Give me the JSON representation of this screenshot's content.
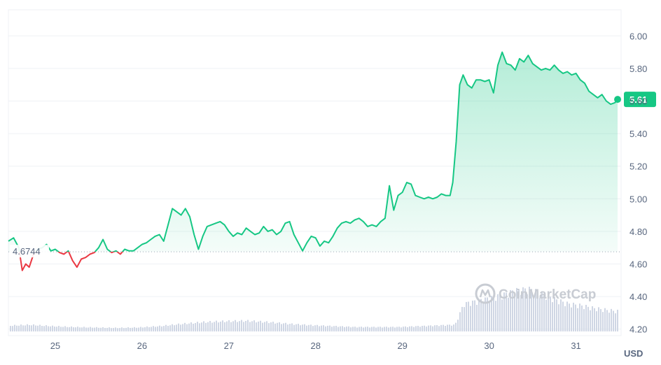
{
  "chart_data": {
    "type": "line",
    "ylim": [
      4.16,
      6.16
    ],
    "y_ticks": [
      "6.00",
      "5.80",
      "5.60",
      "5.40",
      "5.20",
      "5.00",
      "4.80",
      "4.60",
      "4.40",
      "4.20"
    ],
    "x_ticks": [
      {
        "label": "25",
        "x": 25
      },
      {
        "label": "26",
        "x": 26
      },
      {
        "label": "27",
        "x": 27
      },
      {
        "label": "28",
        "x": 28
      },
      {
        "label": "29",
        "x": 29
      },
      {
        "label": "30",
        "x": 30
      },
      {
        "label": "31",
        "x": 31
      }
    ],
    "xlim": [
      24.46,
      31.52
    ],
    "reference": {
      "label": "4.6744",
      "value": 4.6744
    },
    "last_price": {
      "label": "5.61",
      "value": 5.61
    },
    "unit_label": "USD",
    "watermark": "CoinMarketCap",
    "colors": {
      "up": "#16c784",
      "down": "#ea3943",
      "volume": "#cfd6e4",
      "grid": "#eff2f5",
      "text": "#58667e"
    },
    "series": [
      {
        "x": [
          24.46,
          24.52,
          24.58,
          24.62,
          24.66,
          24.7,
          24.75,
          24.8,
          24.85,
          24.9,
          24.95,
          25.0,
          25.05,
          25.1,
          25.15,
          25.2,
          25.25,
          25.3,
          25.35,
          25.4,
          25.45,
          25.5,
          25.55,
          25.6,
          25.65,
          25.7,
          25.75,
          25.8,
          25.85,
          25.9,
          25.95,
          26.0,
          26.05,
          26.1,
          26.15,
          26.2,
          26.25,
          26.3,
          26.35,
          26.4,
          26.45,
          26.5,
          26.55,
          26.6,
          26.65,
          26.7,
          26.75,
          26.8,
          26.85,
          26.9,
          26.95,
          27.0,
          27.05,
          27.1,
          27.15,
          27.2,
          27.25,
          27.3,
          27.35,
          27.4,
          27.45,
          27.5,
          27.55,
          27.6,
          27.65,
          27.7,
          27.75,
          27.8,
          27.85,
          27.9,
          27.95,
          28.0,
          28.05,
          28.1,
          28.15,
          28.2,
          28.25,
          28.3,
          28.35,
          28.4,
          28.45,
          28.5,
          28.55,
          28.6,
          28.65,
          28.7,
          28.75,
          28.8,
          28.85,
          28.9,
          28.95,
          29.0,
          29.05,
          29.1,
          29.15,
          29.2,
          29.25,
          29.3,
          29.35,
          29.4,
          29.45,
          29.5,
          29.55,
          29.58,
          29.62,
          29.66,
          29.7,
          29.75,
          29.8,
          29.85,
          29.9,
          29.95,
          30.0,
          30.05,
          30.1,
          30.15,
          30.2,
          30.25,
          30.3,
          30.35,
          30.4,
          30.45,
          30.5,
          30.55,
          30.6,
          30.65,
          30.7,
          30.75,
          30.8,
          30.85,
          30.9,
          30.95,
          31.0,
          31.05,
          31.1,
          31.15,
          31.2,
          31.25,
          31.3,
          31.35,
          31.4,
          31.45,
          31.48
        ],
        "y": [
          4.74,
          4.76,
          4.7,
          4.56,
          4.6,
          4.58,
          4.66,
          4.69,
          4.7,
          4.72,
          4.68,
          4.69,
          4.67,
          4.66,
          4.68,
          4.62,
          4.58,
          4.63,
          4.64,
          4.66,
          4.67,
          4.7,
          4.75,
          4.69,
          4.67,
          4.68,
          4.66,
          4.69,
          4.68,
          4.68,
          4.7,
          4.72,
          4.73,
          4.75,
          4.77,
          4.78,
          4.74,
          4.84,
          4.94,
          4.92,
          4.9,
          4.94,
          4.89,
          4.78,
          4.69,
          4.77,
          4.83,
          4.84,
          4.85,
          4.86,
          4.84,
          4.8,
          4.77,
          4.79,
          4.78,
          4.82,
          4.8,
          4.78,
          4.79,
          4.83,
          4.8,
          4.81,
          4.78,
          4.8,
          4.85,
          4.86,
          4.78,
          4.73,
          4.68,
          4.73,
          4.77,
          4.76,
          4.71,
          4.74,
          4.73,
          4.77,
          4.82,
          4.85,
          4.86,
          4.85,
          4.87,
          4.88,
          4.86,
          4.83,
          4.84,
          4.83,
          4.86,
          4.88,
          5.08,
          4.93,
          5.02,
          5.04,
          5.1,
          5.09,
          5.02,
          5.01,
          5.0,
          5.01,
          5.0,
          5.01,
          5.03,
          5.02,
          5.02,
          5.1,
          5.35,
          5.7,
          5.76,
          5.7,
          5.68,
          5.73,
          5.73,
          5.72,
          5.73,
          5.65,
          5.82,
          5.9,
          5.83,
          5.82,
          5.79,
          5.86,
          5.84,
          5.88,
          5.83,
          5.81,
          5.79,
          5.8,
          5.79,
          5.82,
          5.79,
          5.77,
          5.78,
          5.76,
          5.77,
          5.73,
          5.71,
          5.66,
          5.64,
          5.62,
          5.64,
          5.6,
          5.58,
          5.59,
          5.61
        ]
      }
    ],
    "volume": {
      "x": [
        24.46,
        24.7,
        24.95,
        25.2,
        25.45,
        25.7,
        25.95,
        26.2,
        26.45,
        26.7,
        26.95,
        27.2,
        27.45,
        27.7,
        27.95,
        28.2,
        28.45,
        28.7,
        28.95,
        29.2,
        29.45,
        29.6,
        29.7,
        29.85,
        30.0,
        30.15,
        30.3,
        30.45,
        30.6,
        30.75,
        30.9,
        31.05,
        31.2,
        31.35,
        31.48
      ],
      "values": [
        0.13,
        0.15,
        0.12,
        0.1,
        0.09,
        0.08,
        0.09,
        0.12,
        0.17,
        0.21,
        0.23,
        0.24,
        0.21,
        0.17,
        0.14,
        0.12,
        0.1,
        0.1,
        0.1,
        0.12,
        0.14,
        0.15,
        0.62,
        0.68,
        0.75,
        0.82,
        0.92,
        0.95,
        0.85,
        0.72,
        0.62,
        0.58,
        0.52,
        0.48,
        0.45
      ]
    }
  }
}
